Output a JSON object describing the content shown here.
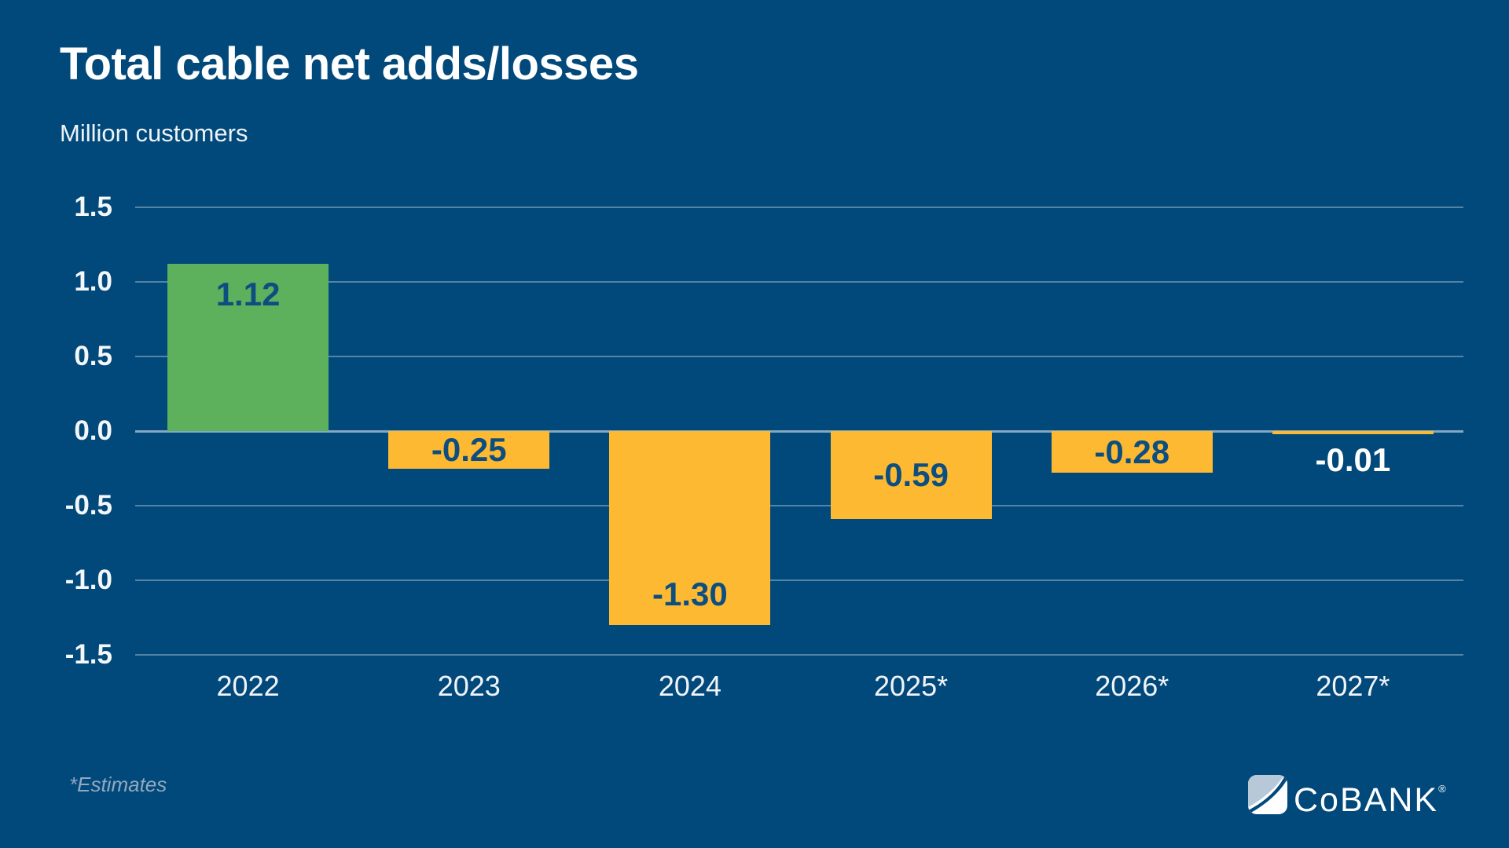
{
  "footnote": "*Estimates",
  "logo": {
    "co": "Co",
    "bank": "BANK",
    "registered": "®"
  },
  "colors": {
    "background": "#02497b",
    "positive_bar": "#5db05c",
    "negative_bar": "#fdb931",
    "label_on_bar": "#0d4e81",
    "label_outside": "#ffffff",
    "logo_light_blue": "#b7c9d8"
  },
  "chart_data": {
    "type": "bar",
    "title": "Total cable net adds/losses",
    "ylabel": "Million customers",
    "categories": [
      "2022",
      "2023",
      "2024",
      "2025*",
      "2026*",
      "2027*"
    ],
    "values": [
      1.12,
      -0.25,
      -1.3,
      -0.59,
      -0.28,
      -0.01
    ],
    "data_labels": [
      "1.12",
      "-0.25",
      "-1.30",
      "-0.59",
      "-0.28",
      "-0.01"
    ],
    "yticks": [
      "1.5",
      "1.0",
      "0.5",
      "0.0",
      "-0.5",
      "-1.0",
      "-1.5"
    ],
    "ylim": [
      -1.5,
      1.5
    ],
    "grid": true,
    "legend": false,
    "annotations": [
      "Years 2025-2027 are estimates"
    ]
  }
}
